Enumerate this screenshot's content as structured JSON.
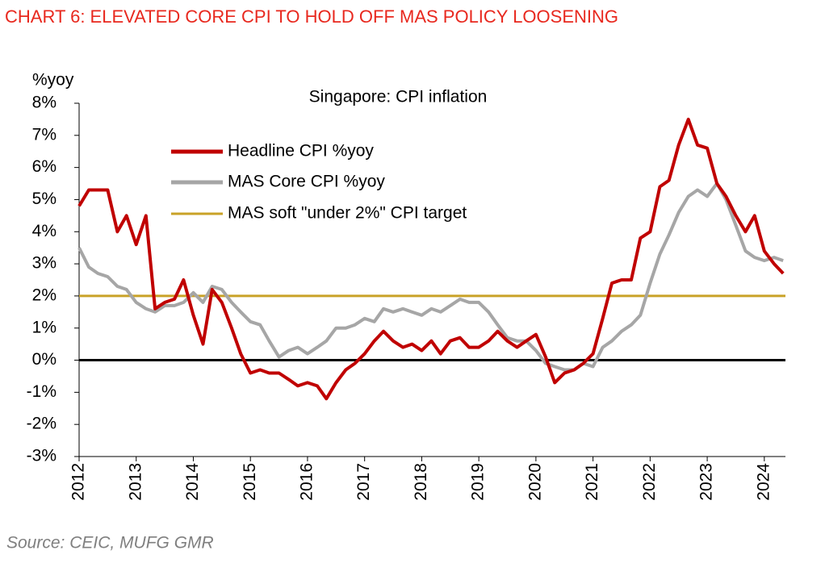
{
  "chart_data": {
    "type": "line",
    "title": "CHART 6: ELEVATED CORE CPI TO HOLD OFF MAS POLICY LOOSENING",
    "subtitle": "Singapore: CPI inflation",
    "y_label": "%yoy",
    "source": "Source: CEIC, MUFG GMR",
    "x": [
      2012,
      2012.17,
      2012.33,
      2012.5,
      2012.67,
      2012.83,
      2013,
      2013.17,
      2013.33,
      2013.5,
      2013.67,
      2013.83,
      2014,
      2014.17,
      2014.33,
      2014.5,
      2014.67,
      2014.83,
      2015,
      2015.17,
      2015.33,
      2015.5,
      2015.67,
      2015.83,
      2016,
      2016.17,
      2016.33,
      2016.5,
      2016.67,
      2016.83,
      2017,
      2017.17,
      2017.33,
      2017.5,
      2017.67,
      2017.83,
      2018,
      2018.17,
      2018.33,
      2018.5,
      2018.67,
      2018.83,
      2019,
      2019.17,
      2019.33,
      2019.5,
      2019.67,
      2019.83,
      2020,
      2020.17,
      2020.33,
      2020.5,
      2020.67,
      2020.83,
      2021,
      2021.17,
      2021.33,
      2021.5,
      2021.67,
      2021.83,
      2022,
      2022.17,
      2022.33,
      2022.5,
      2022.67,
      2022.83,
      2023,
      2023.17,
      2023.33,
      2023.5,
      2023.67,
      2023.83,
      2024,
      2024.17,
      2024.33
    ],
    "series": [
      {
        "name": "Headline CPI %yoy",
        "color": "#c00000",
        "width": 4,
        "values": [
          4.8,
          5.3,
          5.3,
          5.3,
          4.0,
          4.5,
          3.6,
          4.5,
          1.6,
          1.8,
          1.9,
          2.5,
          1.4,
          0.5,
          2.2,
          1.8,
          1.0,
          0.2,
          -0.4,
          -0.3,
          -0.4,
          -0.4,
          -0.6,
          -0.8,
          -0.7,
          -0.8,
          -1.2,
          -0.7,
          -0.3,
          -0.1,
          0.2,
          0.6,
          0.9,
          0.6,
          0.4,
          0.5,
          0.3,
          0.6,
          0.2,
          0.6,
          0.7,
          0.4,
          0.4,
          0.6,
          0.9,
          0.6,
          0.4,
          0.6,
          0.8,
          0.1,
          -0.7,
          -0.4,
          -0.3,
          -0.1,
          0.2,
          1.3,
          2.4,
          2.5,
          2.5,
          3.8,
          4.0,
          5.4,
          5.6,
          6.7,
          7.5,
          6.7,
          6.6,
          5.5,
          5.1,
          4.5,
          4.0,
          4.5,
          3.4,
          3.0,
          2.7
        ]
      },
      {
        "name": "MAS Core CPI %yoy",
        "color": "#a6a6a6",
        "width": 4,
        "values": [
          3.5,
          2.9,
          2.7,
          2.6,
          2.3,
          2.2,
          1.8,
          1.6,
          1.5,
          1.7,
          1.7,
          1.8,
          2.1,
          1.8,
          2.3,
          2.2,
          1.8,
          1.5,
          1.2,
          1.1,
          0.6,
          0.1,
          0.3,
          0.4,
          0.2,
          0.4,
          0.6,
          1.0,
          1.0,
          1.1,
          1.3,
          1.2,
          1.6,
          1.5,
          1.6,
          1.5,
          1.4,
          1.6,
          1.5,
          1.7,
          1.9,
          1.8,
          1.8,
          1.5,
          1.1,
          0.7,
          0.6,
          0.6,
          0.3,
          -0.1,
          -0.2,
          -0.3,
          -0.3,
          -0.1,
          -0.2,
          0.4,
          0.6,
          0.9,
          1.1,
          1.4,
          2.4,
          3.3,
          3.9,
          4.6,
          5.1,
          5.3,
          5.1,
          5.5,
          5.0,
          4.2,
          3.4,
          3.2,
          3.1,
          3.2,
          3.1
        ]
      }
    ],
    "reference_line": {
      "name": "MAS soft \"under 2%\" CPI target",
      "value": 2,
      "color": "#c9a227"
    },
    "xlim": [
      2012,
      2024.37
    ],
    "xticks": [
      2012,
      2013,
      2014,
      2015,
      2016,
      2017,
      2018,
      2019,
      2020,
      2021,
      2022,
      2023,
      2024
    ],
    "ylim": [
      -3,
      8
    ],
    "yticks": [
      {
        "value": -3,
        "label": "-3%"
      },
      {
        "value": -2,
        "label": "-2%"
      },
      {
        "value": -1,
        "label": "-1%"
      },
      {
        "value": 0,
        "label": "0%"
      },
      {
        "value": 1,
        "label": "1%"
      },
      {
        "value": 2,
        "label": "2%"
      },
      {
        "value": 3,
        "label": "3%"
      },
      {
        "value": 4,
        "label": "4%"
      },
      {
        "value": 5,
        "label": "5%"
      },
      {
        "value": 6,
        "label": "6%"
      },
      {
        "value": 7,
        "label": "7%"
      },
      {
        "value": 8,
        "label": "8%"
      }
    ]
  }
}
